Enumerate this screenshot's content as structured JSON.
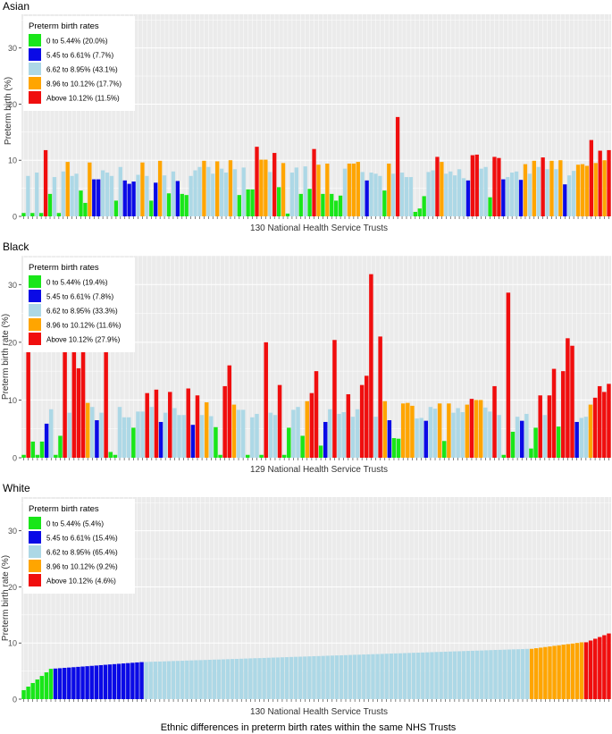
{
  "figure_caption": "Ethnic differences in  preterm birth rates within the same NHS Trusts",
  "category_colors": [
    "#19E619",
    "#0A0AE6",
    "#ADD8E6",
    "#FFA500",
    "#F00E0E"
  ],
  "chart_data": [
    {
      "type": "bar",
      "title": "Asian",
      "xlabel": "130 National Health Service Trusts",
      "ylabel": "Preterm birth (%)",
      "ylim": [
        0,
        36
      ],
      "yticks": [
        0,
        10,
        20,
        30
      ],
      "grid": true,
      "legend": {
        "placement": "top-left",
        "title": "Preterm birth rates",
        "entries": [
          "0 to 5.44% (20.0%)",
          "5.45 to 6.61% (7.7%)",
          "6.62 to 8.95% (43.1%)",
          "8.96 to 10.12% (17.7%)",
          "Above 10.12% (11.5%)"
        ]
      },
      "n_trusts": 130,
      "values": [
        0.6,
        7.2,
        0.6,
        7.8,
        0.6,
        11.8,
        4.0,
        7.0,
        0.6,
        8.0,
        9.7,
        7.2,
        7.6,
        4.6,
        2.4,
        9.6,
        6.6,
        6.6,
        8.2,
        7.8,
        7.2,
        2.8,
        8.8,
        6.4,
        5.8,
        6.2,
        7.4,
        9.6,
        7.2,
        2.8,
        6.0,
        9.9,
        7.3,
        4.1,
        8.0,
        6.3,
        4.0,
        3.8,
        7.2,
        8.2,
        8.8,
        9.9,
        8.8,
        7.6,
        9.8,
        8.5,
        7.8,
        10.0,
        8.4,
        3.8,
        8.7,
        4.8,
        4.8,
        12.4,
        10.1,
        10.1,
        7.9,
        11.3,
        5.2,
        9.5,
        0.5,
        7.8,
        8.7,
        4.0,
        8.9,
        4.9,
        12.0,
        9.2,
        4.0,
        9.4,
        4.0,
        2.8,
        3.7,
        8.5,
        9.4,
        9.4,
        9.7,
        7.9,
        6.4,
        7.8,
        7.6,
        7.2,
        4.6,
        9.4,
        7.6,
        17.7,
        7.8,
        7.0,
        7.0,
        0.8,
        1.4,
        3.6,
        7.9,
        8.2,
        10.6,
        9.7,
        7.6,
        8.0,
        7.3,
        8.4,
        6.8,
        6.4,
        10.9,
        11.0,
        8.5,
        8.8,
        3.4,
        10.6,
        10.4,
        6.6,
        7.0,
        7.8,
        8.0,
        6.5,
        9.3,
        7.6,
        9.9,
        8.8,
        10.5,
        8.4,
        9.9,
        8.4,
        10.0,
        5.7,
        7.3,
        8.1,
        9.2,
        9.3,
        9.0,
        13.6,
        9.5,
        11.7,
        10.0,
        11.8
      ]
    },
    {
      "type": "bar",
      "title": "Black",
      "xlabel": "129 National Health Service Trusts",
      "ylabel": "Preterm birth rate (%)",
      "ylim": [
        0,
        35
      ],
      "yticks": [
        0,
        10,
        20,
        30
      ],
      "grid": true,
      "legend": {
        "placement": "top-left",
        "title": "Preterm birth rates",
        "entries": [
          "0 to 5.44% (19.4%)",
          "5.45 to 6.61% (7.8%)",
          "6.62 to 8.95% (33.3%)",
          "8.96 to 10.12% (11.6%)",
          "Above 10.12% (27.9%)"
        ]
      },
      "n_trusts": 129,
      "values": [
        0.5,
        18.5,
        2.8,
        0.5,
        2.8,
        5.9,
        8.4,
        0.5,
        3.8,
        18.5,
        7.8,
        18.5,
        15.5,
        18.5,
        9.5,
        8.8,
        6.5,
        7.8,
        18.5,
        1.0,
        0.5,
        8.8,
        7.0,
        7.0,
        5.2,
        8.0,
        8.0,
        11.2,
        8.8,
        11.8,
        6.2,
        7.8,
        11.4,
        8.6,
        7.4,
        7.4,
        12.0,
        5.7,
        10.8,
        7.4,
        9.6,
        7.2,
        5.3,
        0.5,
        12.4,
        16.0,
        9.2,
        8.3,
        8.3,
        0.5,
        7.0,
        7.6,
        0.5,
        20.0,
        7.8,
        7.4,
        12.6,
        0.5,
        5.2,
        8.3,
        8.8,
        3.8,
        9.8,
        11.2,
        15.0,
        2.1,
        6.2,
        8.4,
        20.4,
        7.6,
        7.9,
        11.0,
        7.1,
        8.4,
        12.6,
        14.2,
        31.8,
        7.1,
        21.0,
        9.8,
        6.5,
        3.4,
        3.3,
        9.4,
        9.5,
        9.0,
        6.8,
        6.9,
        6.4,
        8.8,
        8.5,
        9.4,
        2.9,
        9.4,
        7.8,
        8.6,
        7.9,
        9.2,
        10.2,
        10.0,
        10.0,
        8.7,
        8.0,
        12.4,
        7.4,
        0.5,
        28.6,
        4.5,
        7.1,
        6.4,
        7.6,
        1.6,
        5.2,
        10.8,
        7.4,
        10.8,
        15.4,
        5.4,
        15.0,
        20.7,
        19.4,
        6.2,
        6.9,
        7.1,
        9.2,
        10.4,
        12.4,
        11.4,
        12.8
      ]
    },
    {
      "type": "bar",
      "title": "White",
      "xlabel": "130 National Health Service Trusts",
      "ylabel": "Preterm birth rate (%)",
      "ylim": [
        0,
        36
      ],
      "yticks": [
        0,
        10,
        20,
        30
      ],
      "grid": true,
      "legend": {
        "placement": "top-left",
        "title": "Preterm birth rates",
        "entries": [
          "0 to 5.44% (5.4%)",
          "5.45 to 6.61% (15.4%)",
          "6.62 to 8.95% (65.4%)",
          "8.96 to 10.12% (9.2%)",
          "Above 10.12% (4.6%)"
        ]
      },
      "n_trusts": 130,
      "sorted_ascending": true,
      "segment_counts": [
        7,
        20,
        85,
        12,
        6
      ],
      "segment_ranges": [
        [
          1.6,
          5.4
        ],
        [
          5.45,
          6.6
        ],
        [
          6.62,
          8.95
        ],
        [
          8.96,
          10.12
        ],
        [
          10.13,
          11.7
        ]
      ]
    }
  ]
}
